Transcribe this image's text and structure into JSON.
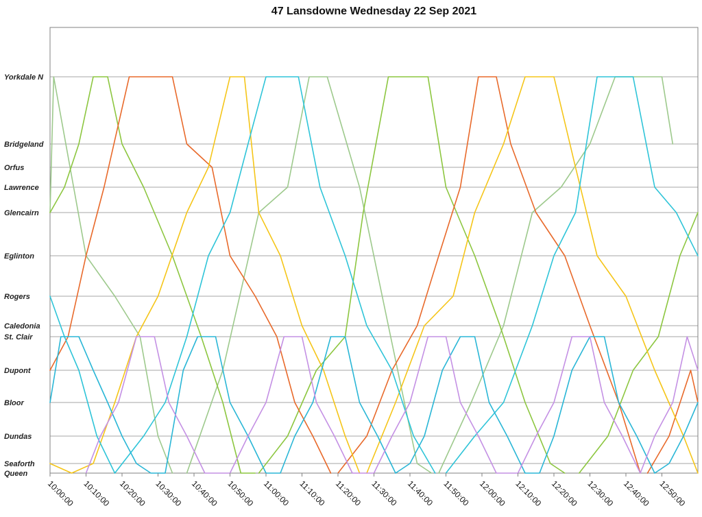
{
  "chart_data": {
    "type": "line",
    "title": "47 Lansdowne Wednesday 22 Sep 2021",
    "xlabel": "",
    "ylabel": "",
    "grid": true,
    "legend": "none",
    "x_ticks": [
      "10:00:00",
      "10:10:00",
      "10:20:00",
      "10:30:00",
      "10:40:00",
      "10:50:00",
      "11:00:00",
      "11:10:00",
      "11:20:00",
      "11:30:00",
      "11:40:00",
      "11:50:00",
      "12:00:00",
      "12:10:00",
      "12:20:00",
      "12:30:00",
      "12:40:00",
      "12:50:00"
    ],
    "xlim": [
      "10:00:00",
      "13:00:00"
    ],
    "stops": [
      "Yorkdale N",
      "Bridgeland",
      "Orfus",
      "Lawrence",
      "Glencairn",
      "Eglinton",
      "Rogers",
      "Caledonia",
      "St. Clair",
      "Dupont",
      "Bloor",
      "Dundas",
      "Seaforth",
      "Queen"
    ],
    "series": [
      {
        "color": "#9dc98c",
        "points": [
          [
            "10:00",
            "Glencairn"
          ],
          [
            "10:01",
            "Yorkdale N"
          ],
          [
            "10:10",
            "Eglinton"
          ],
          [
            "10:18",
            "Rogers"
          ],
          [
            "10:25",
            "St. Clair"
          ],
          [
            "10:30",
            "Dundas"
          ],
          [
            "10:34",
            "Queen"
          ]
        ]
      },
      {
        "color": "#9dc98c",
        "points": [
          [
            "10:38",
            "Queen"
          ],
          [
            "10:48",
            "Dupont"
          ],
          [
            "10:58",
            "Glencairn"
          ],
          [
            "11:06",
            "Lawrence"
          ],
          [
            "11:12",
            "Yorkdale N"
          ],
          [
            "11:17",
            "Yorkdale N"
          ],
          [
            "11:26",
            "Lawrence"
          ],
          [
            "11:34",
            "Caledonia"
          ],
          [
            "11:42",
            "Seaforth"
          ],
          [
            "11:46",
            "Queen"
          ]
        ]
      },
      {
        "color": "#9dc98c",
        "points": [
          [
            "11:48",
            "Queen"
          ],
          [
            "11:57",
            "Bloor"
          ],
          [
            "12:06",
            "Caledonia"
          ],
          [
            "12:14",
            "Glencairn"
          ],
          [
            "12:22",
            "Lawrence"
          ],
          [
            "12:30",
            "Bridgeland"
          ],
          [
            "12:37",
            "Yorkdale N"
          ],
          [
            "12:46",
            "Yorkdale N"
          ],
          [
            "12:49",
            "Yorkdale N"
          ],
          [
            "12:50",
            "Yorkdale N"
          ],
          [
            "12:53",
            "Bridgeland"
          ]
        ]
      },
      {
        "color": "#8cc63f",
        "points": [
          [
            "10:00",
            "Glencairn"
          ],
          [
            "10:04",
            "Lawrence"
          ],
          [
            "10:08",
            "Bridgeland"
          ],
          [
            "10:12",
            "Yorkdale N"
          ],
          [
            "10:16",
            "Yorkdale N"
          ],
          [
            "10:20",
            "Bridgeland"
          ],
          [
            "10:26",
            "Lawrence"
          ],
          [
            "10:34",
            "Eglinton"
          ],
          [
            "10:42",
            "St. Clair"
          ],
          [
            "10:48",
            "Bloor"
          ],
          [
            "10:53",
            "Queen"
          ],
          [
            "10:57",
            "Queen"
          ]
        ]
      },
      {
        "color": "#8cc63f",
        "points": [
          [
            "10:58",
            "Queen"
          ],
          [
            "11:06",
            "Dundas"
          ],
          [
            "11:14",
            "Dupont"
          ],
          [
            "11:22",
            "St. Clair"
          ],
          [
            "11:27",
            "Glencairn"
          ],
          [
            "11:34",
            "Yorkdale N"
          ],
          [
            "11:45",
            "Yorkdale N"
          ],
          [
            "11:50",
            "Lawrence"
          ],
          [
            "11:58",
            "Eglinton"
          ],
          [
            "12:05",
            "Caledonia"
          ],
          [
            "12:12",
            "Bloor"
          ],
          [
            "12:19",
            "Seaforth"
          ],
          [
            "12:23",
            "Queen"
          ]
        ]
      },
      {
        "color": "#8cc63f",
        "points": [
          [
            "12:27",
            "Queen"
          ],
          [
            "12:35",
            "Dundas"
          ],
          [
            "12:42",
            "Dupont"
          ],
          [
            "12:49",
            "St. Clair"
          ],
          [
            "12:55",
            "Eglinton"
          ],
          [
            "13:00",
            "Glencairn"
          ]
        ]
      },
      {
        "color": "#e8692a",
        "points": [
          [
            "10:00",
            "Dupont"
          ],
          [
            "10:05",
            "St. Clair"
          ],
          [
            "10:10",
            "Eglinton"
          ],
          [
            "10:15",
            "Lawrence"
          ],
          [
            "10:22",
            "Yorkdale N"
          ],
          [
            "10:34",
            "Yorkdale N"
          ],
          [
            "10:38",
            "Bridgeland"
          ],
          [
            "10:45",
            "Orfus"
          ],
          [
            "10:50",
            "Eglinton"
          ],
          [
            "10:57",
            "Rogers"
          ],
          [
            "11:03",
            "St. Clair"
          ],
          [
            "11:08",
            "Bloor"
          ],
          [
            "11:13",
            "Dundas"
          ],
          [
            "11:18",
            "Queen"
          ]
        ]
      },
      {
        "color": "#e8692a",
        "points": [
          [
            "11:20",
            "Queen"
          ],
          [
            "11:28",
            "Dundas"
          ],
          [
            "11:35",
            "Dupont"
          ],
          [
            "11:42",
            "Caledonia"
          ],
          [
            "11:48",
            "Eglinton"
          ],
          [
            "11:54",
            "Lawrence"
          ],
          [
            "11:59",
            "Yorkdale N"
          ],
          [
            "12:04",
            "Yorkdale N"
          ],
          [
            "12:08",
            "Bridgeland"
          ],
          [
            "12:15",
            "Glencairn"
          ],
          [
            "12:23",
            "Eglinton"
          ],
          [
            "12:30",
            "Caledonia"
          ],
          [
            "12:38",
            "Bloor"
          ],
          [
            "12:44",
            "Queen"
          ]
        ]
      },
      {
        "color": "#e8692a",
        "points": [
          [
            "12:46",
            "Queen"
          ],
          [
            "12:52",
            "Dundas"
          ],
          [
            "12:58",
            "Dupont"
          ],
          [
            "13:00",
            "Bloor"
          ]
        ]
      },
      {
        "color": "#f5c518",
        "points": [
          [
            "10:00",
            "Seaforth"
          ],
          [
            "10:06",
            "Queen"
          ],
          [
            "10:12",
            "Seaforth"
          ],
          [
            "10:18",
            "Bloor"
          ],
          [
            "10:24",
            "St. Clair"
          ],
          [
            "10:30",
            "Rogers"
          ],
          [
            "10:38",
            "Glencairn"
          ],
          [
            "10:44",
            "Orfus"
          ],
          [
            "10:50",
            "Yorkdale N"
          ],
          [
            "10:54",
            "Yorkdale N"
          ],
          [
            "10:58",
            "Glencairn"
          ],
          [
            "11:04",
            "Eglinton"
          ],
          [
            "11:10",
            "Caledonia"
          ],
          [
            "11:16",
            "Dupont"
          ],
          [
            "11:22",
            "Dundas"
          ],
          [
            "11:26",
            "Queen"
          ]
        ]
      },
      {
        "color": "#f5c518",
        "points": [
          [
            "11:28",
            "Queen"
          ],
          [
            "11:36",
            "Bloor"
          ],
          [
            "11:44",
            "Caledonia"
          ],
          [
            "11:52",
            "Rogers"
          ],
          [
            "11:58",
            "Glencairn"
          ],
          [
            "12:06",
            "Bridgeland"
          ],
          [
            "12:12",
            "Yorkdale N"
          ],
          [
            "12:20",
            "Yorkdale N"
          ],
          [
            "12:26",
            "Orfus"
          ],
          [
            "12:32",
            "Eglinton"
          ],
          [
            "12:40",
            "Rogers"
          ],
          [
            "12:48",
            "Dupont"
          ],
          [
            "12:56",
            "Dundas"
          ],
          [
            "13:00",
            "Queen"
          ]
        ]
      },
      {
        "color": "#2ec4d8",
        "points": [
          [
            "10:00",
            "Rogers"
          ],
          [
            "10:04",
            "St. Clair"
          ],
          [
            "10:08",
            "Dupont"
          ],
          [
            "10:13",
            "Dundas"
          ],
          [
            "10:18",
            "Queen"
          ],
          [
            "10:26",
            "Dundas"
          ],
          [
            "10:32",
            "Bloor"
          ],
          [
            "10:38",
            "St. Clair"
          ],
          [
            "10:44",
            "Eglinton"
          ],
          [
            "10:50",
            "Glencairn"
          ],
          [
            "10:55",
            "Bridgeland"
          ],
          [
            "11:00",
            "Yorkdale N"
          ],
          [
            "11:09",
            "Yorkdale N"
          ],
          [
            "11:15",
            "Lawrence"
          ],
          [
            "11:22",
            "Eglinton"
          ],
          [
            "11:28",
            "Caledonia"
          ],
          [
            "11:35",
            "Dupont"
          ],
          [
            "11:41",
            "Dundas"
          ],
          [
            "11:47",
            "Queen"
          ]
        ]
      },
      {
        "color": "#2ec4d8",
        "points": [
          [
            "11:50",
            "Queen"
          ],
          [
            "11:58",
            "Dundas"
          ],
          [
            "12:06",
            "Bloor"
          ],
          [
            "12:14",
            "Caledonia"
          ],
          [
            "12:20",
            "Eglinton"
          ],
          [
            "12:26",
            "Glencairn"
          ],
          [
            "12:32",
            "Yorkdale N"
          ],
          [
            "12:42",
            "Yorkdale N"
          ],
          [
            "12:48",
            "Lawrence"
          ],
          [
            "12:54",
            "Glencairn"
          ],
          [
            "13:00",
            "Eglinton"
          ]
        ]
      },
      {
        "color": "#29b6d6",
        "points": [
          [
            "10:00",
            "Bloor"
          ],
          [
            "10:03",
            "St. Clair"
          ],
          [
            "10:08",
            "St. Clair"
          ],
          [
            "10:12",
            "Dupont"
          ],
          [
            "10:16",
            "Bloor"
          ],
          [
            "10:20",
            "Dundas"
          ],
          [
            "10:24",
            "Seaforth"
          ],
          [
            "10:28",
            "Queen"
          ],
          [
            "10:32",
            "Queen"
          ],
          [
            "10:37",
            "Dupont"
          ],
          [
            "10:41",
            "St. Clair"
          ],
          [
            "10:46",
            "St. Clair"
          ],
          [
            "10:50",
            "Bloor"
          ],
          [
            "10:55",
            "Dundas"
          ],
          [
            "11:00",
            "Queen"
          ],
          [
            "11:04",
            "Queen"
          ],
          [
            "11:08",
            "Dundas"
          ],
          [
            "11:13",
            "Bloor"
          ],
          [
            "11:18",
            "St. Clair"
          ],
          [
            "11:22",
            "St. Clair"
          ],
          [
            "11:26",
            "Bloor"
          ],
          [
            "11:31",
            "Dundas"
          ],
          [
            "11:36",
            "Queen"
          ],
          [
            "11:40",
            "Seaforth"
          ],
          [
            "11:44",
            "Dundas"
          ],
          [
            "11:49",
            "Dupont"
          ],
          [
            "11:54",
            "St. Clair"
          ],
          [
            "11:58",
            "St. Clair"
          ],
          [
            "12:02",
            "Bloor"
          ],
          [
            "12:07",
            "Dundas"
          ],
          [
            "12:12",
            "Queen"
          ],
          [
            "12:16",
            "Queen"
          ],
          [
            "12:20",
            "Dundas"
          ],
          [
            "12:25",
            "Dupont"
          ],
          [
            "12:30",
            "St. Clair"
          ],
          [
            "12:34",
            "St. Clair"
          ],
          [
            "12:38",
            "Bloor"
          ],
          [
            "12:43",
            "Dundas"
          ],
          [
            "12:48",
            "Queen"
          ],
          [
            "12:52",
            "Seaforth"
          ],
          [
            "12:56",
            "Dundas"
          ],
          [
            "13:00",
            "Bloor"
          ]
        ]
      },
      {
        "color": "#c490e4",
        "points": [
          [
            "10:10",
            "Queen"
          ],
          [
            "10:14",
            "Dundas"
          ],
          [
            "10:19",
            "Bloor"
          ],
          [
            "10:24",
            "St. Clair"
          ],
          [
            "10:29",
            "St. Clair"
          ],
          [
            "10:33",
            "Bloor"
          ],
          [
            "10:38",
            "Dundas"
          ],
          [
            "10:43",
            "Queen"
          ],
          [
            "10:50",
            "Queen"
          ],
          [
            "10:55",
            "Dundas"
          ],
          [
            "11:00",
            "Bloor"
          ],
          [
            "11:05",
            "St. Clair"
          ],
          [
            "11:10",
            "St. Clair"
          ],
          [
            "11:14",
            "Bloor"
          ],
          [
            "11:19",
            "Dundas"
          ],
          [
            "11:24",
            "Queen"
          ],
          [
            "11:30",
            "Queen"
          ],
          [
            "11:35",
            "Dundas"
          ],
          [
            "11:40",
            "Bloor"
          ],
          [
            "11:45",
            "St. Clair"
          ],
          [
            "11:50",
            "St. Clair"
          ],
          [
            "11:54",
            "Bloor"
          ],
          [
            "11:59",
            "Dundas"
          ],
          [
            "12:04",
            "Queen"
          ],
          [
            "12:10",
            "Queen"
          ],
          [
            "12:15",
            "Dundas"
          ],
          [
            "12:20",
            "Bloor"
          ],
          [
            "12:25",
            "St. Clair"
          ],
          [
            "12:30",
            "St. Clair"
          ],
          [
            "12:34",
            "Bloor"
          ],
          [
            "12:39",
            "Dundas"
          ],
          [
            "12:44",
            "Queen"
          ],
          [
            "12:48",
            "Dundas"
          ],
          [
            "12:53",
            "Bloor"
          ],
          [
            "12:57",
            "St. Clair"
          ],
          [
            "13:00",
            "Dupont"
          ]
        ]
      }
    ]
  }
}
